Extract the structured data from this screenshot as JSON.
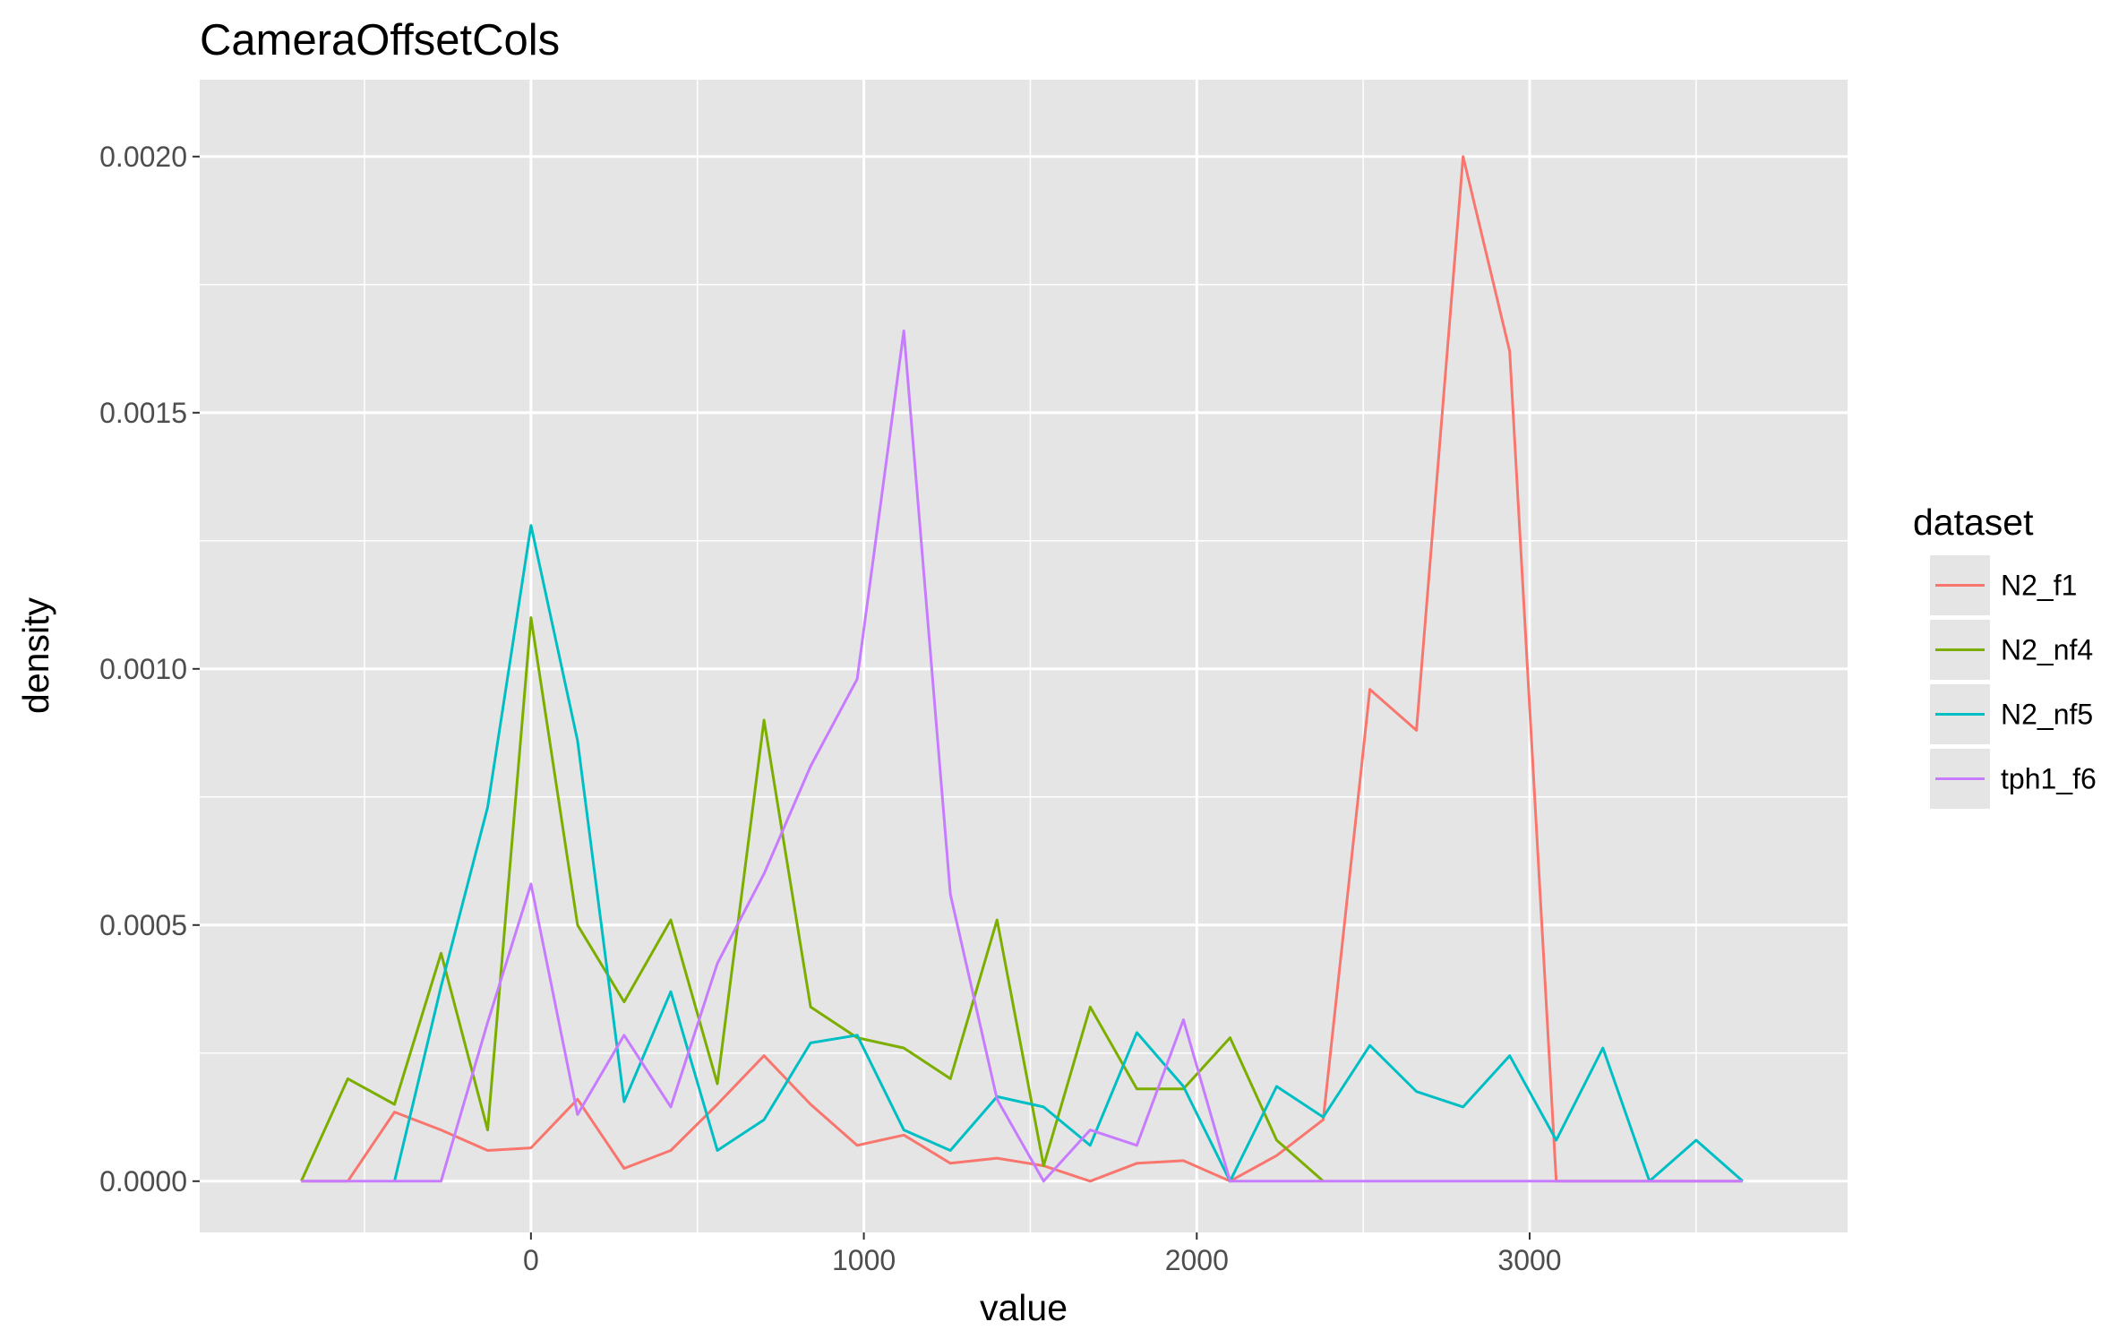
{
  "chart_data": {
    "type": "line",
    "title": "CameraOffsetCols",
    "xlabel": "value",
    "ylabel": "density",
    "xlim": [
      -995,
      3955
    ],
    "ylim": [
      -0.0001,
      0.00215
    ],
    "x_ticks": [
      0,
      1000,
      2000,
      3000
    ],
    "x_tick_labels": [
      "0",
      "1000",
      "2000",
      "3000"
    ],
    "y_ticks": [
      0,
      0.0005,
      0.001,
      0.0015,
      0.002
    ],
    "y_tick_labels": [
      "0.0000",
      "0.0005",
      "0.0010",
      "0.0015",
      "0.0020"
    ],
    "grid": true,
    "colors": {
      "panel_background": "#e5e5e5",
      "grid_line": "#ffffff"
    },
    "legend": {
      "title": "dataset",
      "position": "right"
    },
    "series": [
      {
        "name": "N2_f1",
        "color": "#f8766d",
        "x": [
          -690,
          -550,
          -410,
          -270,
          -130,
          0,
          140,
          280,
          420,
          560,
          700,
          840,
          980,
          1120,
          1260,
          1400,
          1540,
          1680,
          1820,
          1960,
          2100,
          2240,
          2380,
          2520,
          2660,
          2800,
          2940,
          3080,
          3220,
          3360,
          3500,
          3640
        ],
        "y": [
          0,
          0,
          0.000135,
          0.0001,
          6e-05,
          6.5e-05,
          0.00016,
          2.5e-05,
          6e-05,
          0.00015,
          0.000245,
          0.00015,
          7e-05,
          9e-05,
          3.5e-05,
          4.5e-05,
          3e-05,
          0,
          3.5e-05,
          4e-05,
          0,
          5e-05,
          0.00012,
          0.00096,
          0.00088,
          0.002,
          0.00162,
          0,
          0,
          0,
          0,
          0
        ]
      },
      {
        "name": "N2_nf4",
        "color": "#7cae00",
        "x": [
          -690,
          -550,
          -410,
          -270,
          -130,
          0,
          140,
          280,
          420,
          560,
          700,
          840,
          980,
          1120,
          1260,
          1400,
          1540,
          1680,
          1820,
          1960,
          2100,
          2240,
          2380
        ],
        "y": [
          0,
          0.0002,
          0.00015,
          0.000445,
          0.0001,
          0.0011,
          0.0005,
          0.00035,
          0.00051,
          0.00019,
          0.0009,
          0.00034,
          0.00028,
          0.00026,
          0.0002,
          0.00051,
          3e-05,
          0.00034,
          0.00018,
          0.00018,
          0.00028,
          8e-05,
          0
        ]
      },
      {
        "name": "N2_nf5",
        "color": "#00bfc4",
        "x": [
          -410,
          -270,
          -130,
          0,
          140,
          280,
          420,
          560,
          700,
          840,
          980,
          1120,
          1260,
          1400,
          1540,
          1680,
          1820,
          1960,
          2100,
          2240,
          2380,
          2520,
          2660,
          2800,
          2940,
          3080,
          3220,
          3360,
          3500,
          3640
        ],
        "y": [
          0,
          0.00038,
          0.00073,
          0.00128,
          0.00086,
          0.000155,
          0.00037,
          6e-05,
          0.00012,
          0.00027,
          0.000285,
          0.0001,
          6e-05,
          0.000165,
          0.000145,
          7e-05,
          0.00029,
          0.000185,
          0,
          0.000185,
          0.000125,
          0.000265,
          0.000175,
          0.000145,
          0.000245,
          8e-05,
          0.00026,
          0,
          8e-05,
          0
        ]
      },
      {
        "name": "tph1_f6",
        "color": "#c77cff",
        "x": [
          -690,
          -550,
          -410,
          -270,
          -130,
          0,
          140,
          280,
          420,
          560,
          700,
          840,
          980,
          1120,
          1260,
          1400,
          1540,
          1680,
          1820,
          1960,
          2100,
          2240,
          2380,
          2520,
          2660,
          2800,
          2940,
          3080,
          3220,
          3360,
          3500,
          3640
        ],
        "y": [
          0,
          0,
          0,
          0,
          0.00031,
          0.00058,
          0.00013,
          0.000285,
          0.000145,
          0.000425,
          0.0006,
          0.00081,
          0.00098,
          0.00166,
          0.00056,
          0.00016,
          0,
          0.0001,
          7e-05,
          0.000315,
          0,
          0,
          0,
          0,
          0,
          0,
          0,
          0,
          0,
          0,
          0,
          0
        ]
      }
    ]
  }
}
